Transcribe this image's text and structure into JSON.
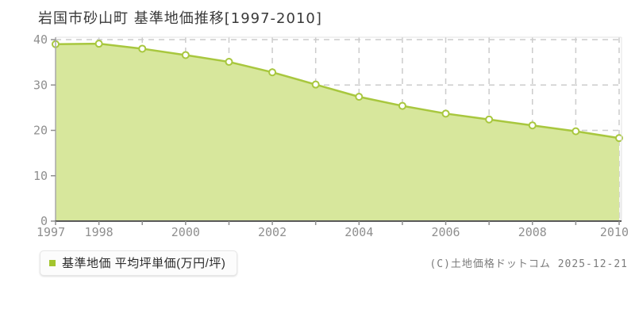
{
  "header": {
    "title": "岩国市砂山町 基準地価推移[1997-2010]"
  },
  "legend": {
    "label": "基準地価 平均坪単価(万円/坪)",
    "swatch_color": "#a3c52e"
  },
  "footer": {
    "copyright": "(C)土地価格ドットコム 2025-12-21"
  },
  "chart_data": {
    "type": "area",
    "title": "岩国市砂山町 基準地価推移[1997-2010]",
    "x": [
      1997,
      1998,
      1999,
      2000,
      2001,
      2002,
      2003,
      2004,
      2005,
      2006,
      2007,
      2008,
      2009,
      2010
    ],
    "series": [
      {
        "name": "基準地価 平均坪単価(万円/坪)",
        "values": [
          39.0,
          39.1,
          38.0,
          36.6,
          35.1,
          32.8,
          30.1,
          27.4,
          25.4,
          23.7,
          22.4,
          21.1,
          19.8,
          18.3
        ]
      }
    ],
    "ylabel": "",
    "xlabel": "",
    "unit": "万円/坪",
    "ylim": [
      0,
      40
    ],
    "yticks": [
      0,
      10,
      20,
      30,
      40
    ],
    "xticks_labeled": [
      1997,
      1998,
      2000,
      2002,
      2004,
      2006,
      2008,
      2010
    ],
    "grid": "dashed",
    "legend_position": "bottom-left",
    "colors": {
      "line": "#a8c73e",
      "fill": "#d7e79c",
      "marker_fill": "#ffffff",
      "grid": "#cccccc",
      "axis_bottom": "#5a5a5a",
      "axis_left": "#a8a8a8",
      "plot_border": "#e3e3e3",
      "tick": "#8f8f8f",
      "plotbg_top": "#ffffff",
      "plotbg_bottom": "#efefef"
    }
  }
}
